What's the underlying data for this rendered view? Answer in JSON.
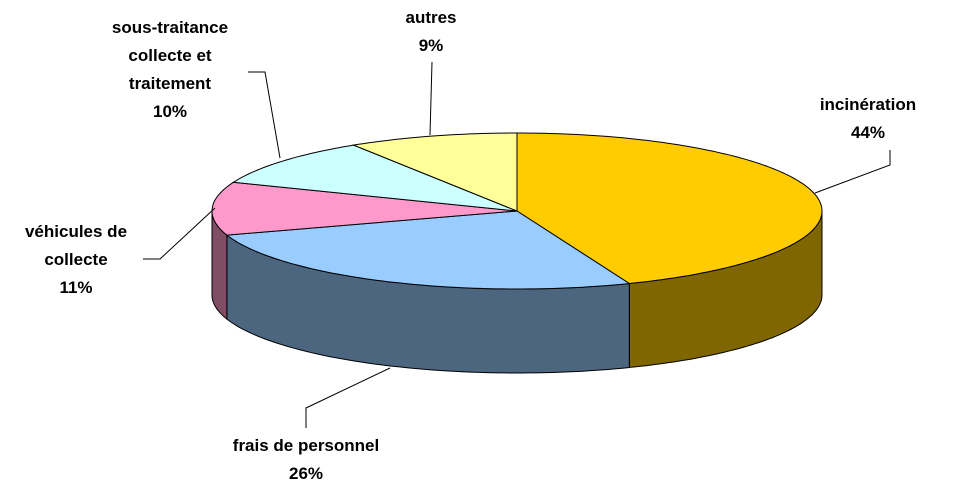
{
  "chart_data": {
    "type": "pie3d",
    "categories": [
      "incinération",
      "frais de personnel",
      "véhicules de collecte",
      "sous-traitance collecte et traitement",
      "autres"
    ],
    "values": [
      44,
      26,
      11,
      10,
      9
    ],
    "value_labels": [
      "44%",
      "26%",
      "11%",
      "10%",
      "9%"
    ],
    "colors": [
      "#ffcc00",
      "#99ccff",
      "#ff99cc",
      "#ccffff",
      "#ffff99"
    ],
    "side_colors": [
      "#806600",
      "#4d6680",
      "#804d66",
      "#668080",
      "#808033"
    ]
  }
}
